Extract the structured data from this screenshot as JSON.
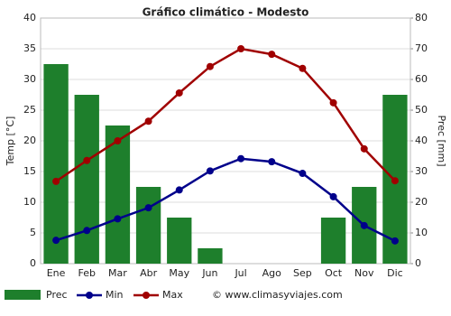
{
  "chart_data": {
    "type": "combo",
    "title": "Gráfico climático - Modesto",
    "ylabel": "Temp [°C]",
    "y2label": "Prec [mm]",
    "categories": [
      "Ene",
      "Feb",
      "Mar",
      "Abr",
      "May",
      "Jun",
      "Jul",
      "Ago",
      "Sep",
      "Oct",
      "Nov",
      "Dic"
    ],
    "series": [
      {
        "name": "Prec",
        "type": "bar",
        "axis": "y2",
        "color": "#1e7f2c",
        "values": [
          65,
          55,
          45,
          25,
          15,
          5,
          0,
          0,
          0,
          15,
          25,
          55
        ]
      },
      {
        "name": "Min",
        "type": "line",
        "color": "#00008b",
        "values": [
          3.8,
          5.4,
          7.3,
          9.1,
          12.0,
          15.1,
          17.1,
          16.6,
          14.7,
          10.9,
          6.2,
          3.7
        ]
      },
      {
        "name": "Max",
        "type": "line",
        "color": "#a00000",
        "values": [
          13.4,
          16.8,
          20.0,
          23.2,
          27.8,
          32.1,
          35.0,
          34.1,
          31.8,
          26.2,
          18.7,
          13.5
        ]
      }
    ],
    "ylim": [
      0,
      40
    ],
    "yticks": [
      0,
      5,
      10,
      15,
      20,
      25,
      30,
      35,
      40
    ],
    "y2lim": [
      0,
      80
    ],
    "y2ticks": [
      0,
      10,
      20,
      30,
      40,
      50,
      60,
      70,
      80
    ],
    "grid": true,
    "source": "© www.climasyviajes.com"
  }
}
